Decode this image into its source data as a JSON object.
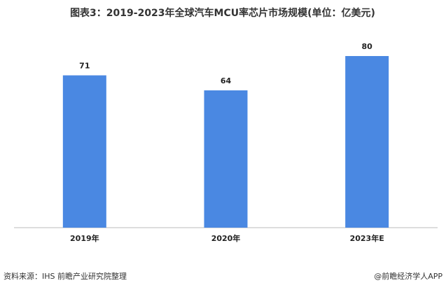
{
  "chart_data": {
    "type": "bar",
    "title": "图表3：2019-2023年全球汽车MCU率芯片市场规模(单位：亿美元)",
    "categories": [
      "2019年",
      "2020年",
      "2023年E"
    ],
    "values": [
      71,
      64,
      80
    ],
    "color": "#4a88e2",
    "source": "资料来源：IHS 前瞻产业研究院整理",
    "credit": "@前瞻经济学人APP"
  }
}
